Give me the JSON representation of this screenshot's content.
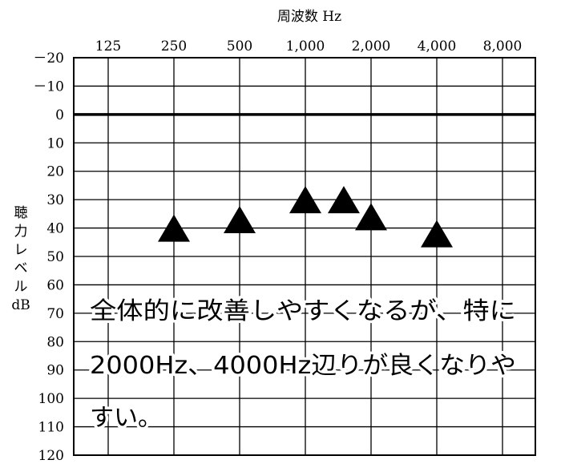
{
  "chart_data": {
    "type": "scatter",
    "xlabel": "周波数 Hz",
    "ylabel_lines": [
      "聴",
      "力",
      "レ",
      "ベ",
      "ル",
      "dB"
    ],
    "x_tick_labels": [
      "125",
      "250",
      "500",
      "1,000",
      "2,000",
      "4,000",
      "8,000"
    ],
    "y_tick_labels": [
      "－20",
      "－10",
      "0",
      "10",
      "20",
      "30",
      "40",
      "50",
      "60",
      "70",
      "80",
      "90",
      "100",
      "110",
      "120"
    ],
    "y_ticks": [
      -20,
      -10,
      0,
      10,
      20,
      30,
      40,
      50,
      60,
      70,
      80,
      90,
      100,
      110,
      120
    ],
    "ylim": [
      -20,
      120
    ],
    "y_inverted": true,
    "x_scale": "log2-octave",
    "grid": true,
    "marker": "triangle",
    "series": [
      {
        "x": [
          250,
          500,
          1000,
          1500,
          2000,
          4000
        ],
        "y": [
          40,
          37,
          30,
          30,
          36,
          42
        ]
      }
    ],
    "annotation_lines": [
      "全体的に改善しやすくなるが、特に",
      "2000Hz、4000Hz辺りが良くなりや",
      "すい。"
    ]
  }
}
